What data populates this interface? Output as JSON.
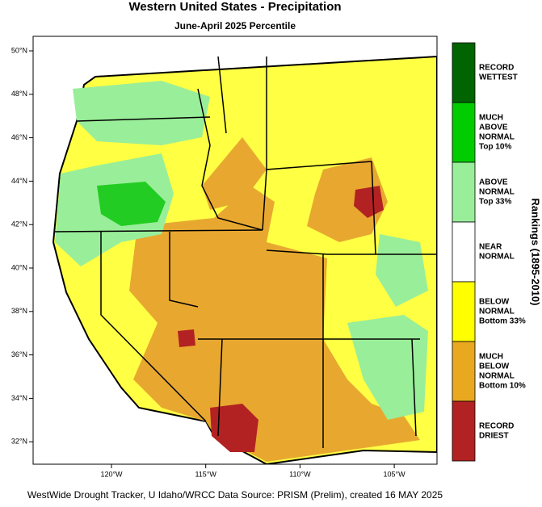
{
  "header": {
    "title": "Western United States - Precipitation",
    "subtitle": "June-April 2025 Percentile"
  },
  "map": {
    "latitude_labels": [
      "50°N",
      "48°N",
      "46°N",
      "44°N",
      "42°N",
      "40°N",
      "38°N",
      "36°N",
      "34°N",
      "32°N"
    ],
    "longitude_labels": [
      "120°W",
      "115°W",
      "110°W",
      "105°W"
    ]
  },
  "legend": {
    "title": "Rankings (1895-2010)",
    "entries": [
      {
        "lines": [
          "RECORD",
          "WETTEST"
        ],
        "color": "#006400"
      },
      {
        "lines": [
          "MUCH",
          "ABOVE",
          "NORMAL",
          "Top 10%"
        ],
        "color": "#00cc00"
      },
      {
        "lines": [
          "ABOVE",
          "NORMAL",
          "Top 33%"
        ],
        "color": "#99ee99"
      },
      {
        "lines": [
          "NEAR",
          "NORMAL"
        ],
        "color": "#ffffff"
      },
      {
        "lines": [
          "BELOW",
          "NORMAL",
          "Bottom 33%"
        ],
        "color": "#ffff00"
      },
      {
        "lines": [
          "MUCH",
          "BELOW",
          "NORMAL",
          "Bottom 10%"
        ],
        "color": "#e8a820"
      },
      {
        "lines": [
          "RECORD",
          "DRIEST"
        ],
        "color": "#b22222"
      }
    ]
  },
  "footer": "WestWide Drought Tracker, U Idaho/WRCC Data Source: PRISM (Prelim), created 16 MAY 2025"
}
